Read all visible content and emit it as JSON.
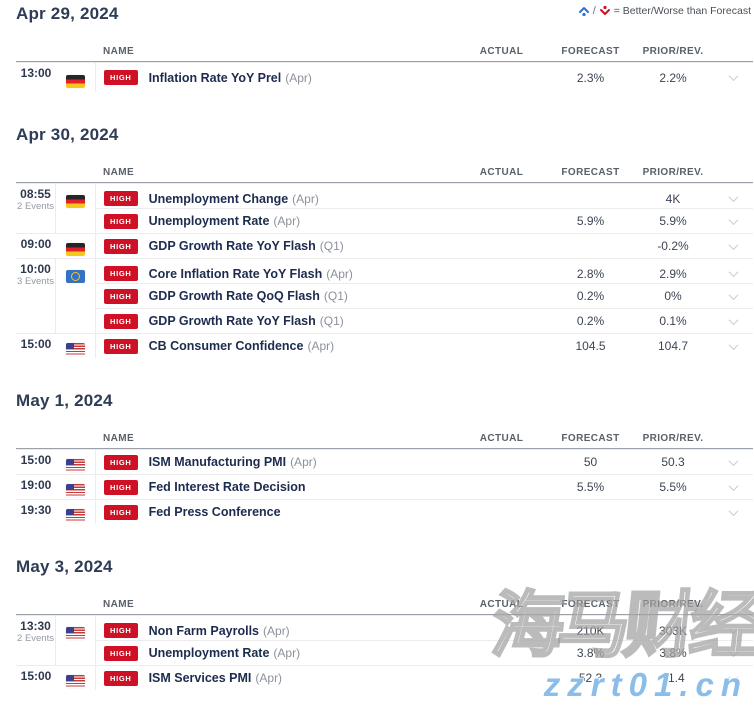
{
  "legend": {
    "better_icon": "arrow-up-better-icon",
    "worse_icon": "arrow-down-worse-icon",
    "better_color": "#2e6fd8",
    "worse_color": "#cf1125",
    "separator": "/",
    "text": "= Better/Worse than Forecast"
  },
  "table": {
    "columns": {
      "name": "NAME",
      "actual": "ACTUAL",
      "forecast": "FORECAST",
      "prior": "PRIOR/REV."
    },
    "importance_badge": "HIGH",
    "badge_color": "#cf1125"
  },
  "sections": [
    {
      "date": "Apr 29, 2024",
      "rows": [
        {
          "time": "13:00",
          "events": "",
          "flag": "germany",
          "name": "Inflation Rate YoY Prel",
          "period": "(Apr)",
          "actual": "",
          "forecast": "2.3%",
          "prior": "2.2%",
          "new_group": true,
          "grouped": false
        }
      ]
    },
    {
      "date": "Apr 30, 2024",
      "rows": [
        {
          "time": "08:55",
          "events": "2 Events",
          "flag": "germany",
          "name": "Unemployment Change",
          "period": "(Apr)",
          "actual": "",
          "forecast": "",
          "prior": "4K",
          "new_group": true,
          "grouped": true
        },
        {
          "time": "",
          "events": "",
          "flag": "",
          "name": "Unemployment Rate",
          "period": "(Apr)",
          "actual": "",
          "forecast": "5.9%",
          "prior": "5.9%",
          "new_group": false,
          "grouped": true
        },
        {
          "time": "09:00",
          "events": "",
          "flag": "germany",
          "name": "GDP Growth Rate YoY Flash",
          "period": "(Q1)",
          "actual": "",
          "forecast": "",
          "prior": "-0.2%",
          "new_group": true,
          "grouped": false
        },
        {
          "time": "10:00",
          "events": "3 Events",
          "flag": "eu",
          "name": "Core Inflation Rate YoY Flash",
          "period": "(Apr)",
          "actual": "",
          "forecast": "2.8%",
          "prior": "2.9%",
          "new_group": true,
          "grouped": true
        },
        {
          "time": "",
          "events": "",
          "flag": "",
          "name": "GDP Growth Rate QoQ Flash",
          "period": "(Q1)",
          "actual": "",
          "forecast": "0.2%",
          "prior": "0%",
          "new_group": false,
          "grouped": true
        },
        {
          "time": "",
          "events": "",
          "flag": "",
          "name": "GDP Growth Rate YoY Flash",
          "period": "(Q1)",
          "actual": "",
          "forecast": "0.2%",
          "prior": "0.1%",
          "new_group": false,
          "grouped": true
        },
        {
          "time": "15:00",
          "events": "",
          "flag": "us",
          "name": "CB Consumer Confidence",
          "period": "(Apr)",
          "actual": "",
          "forecast": "104.5",
          "prior": "104.7",
          "new_group": true,
          "grouped": false
        }
      ]
    },
    {
      "date": "May 1, 2024",
      "rows": [
        {
          "time": "15:00",
          "events": "",
          "flag": "us",
          "name": "ISM Manufacturing PMI",
          "period": "(Apr)",
          "actual": "",
          "forecast": "50",
          "prior": "50.3",
          "new_group": true,
          "grouped": false
        },
        {
          "time": "19:00",
          "events": "",
          "flag": "us",
          "name": "Fed Interest Rate Decision",
          "period": "",
          "actual": "",
          "forecast": "5.5%",
          "prior": "5.5%",
          "new_group": true,
          "grouped": false
        },
        {
          "time": "19:30",
          "events": "",
          "flag": "us",
          "name": "Fed Press Conference",
          "period": "",
          "actual": "",
          "forecast": "",
          "prior": "",
          "new_group": true,
          "grouped": false
        }
      ]
    },
    {
      "date": "May 3, 2024",
      "rows": [
        {
          "time": "13:30",
          "events": "2 Events",
          "flag": "us",
          "name": "Non Farm Payrolls",
          "period": "(Apr)",
          "actual": "",
          "forecast": "210K",
          "prior": "303K",
          "new_group": true,
          "grouped": true
        },
        {
          "time": "",
          "events": "",
          "flag": "",
          "name": "Unemployment Rate",
          "period": "(Apr)",
          "actual": "",
          "forecast": "3.8%",
          "prior": "3.8%",
          "new_group": false,
          "grouped": true
        },
        {
          "time": "15:00",
          "events": "",
          "flag": "us",
          "name": "ISM Services PMI",
          "period": "(Apr)",
          "actual": "",
          "forecast": "52.3",
          "prior": "51.4",
          "new_group": true,
          "grouped": false
        }
      ]
    }
  ],
  "watermark": {
    "title": "海马财经",
    "domain": "zzrt01.cn"
  }
}
